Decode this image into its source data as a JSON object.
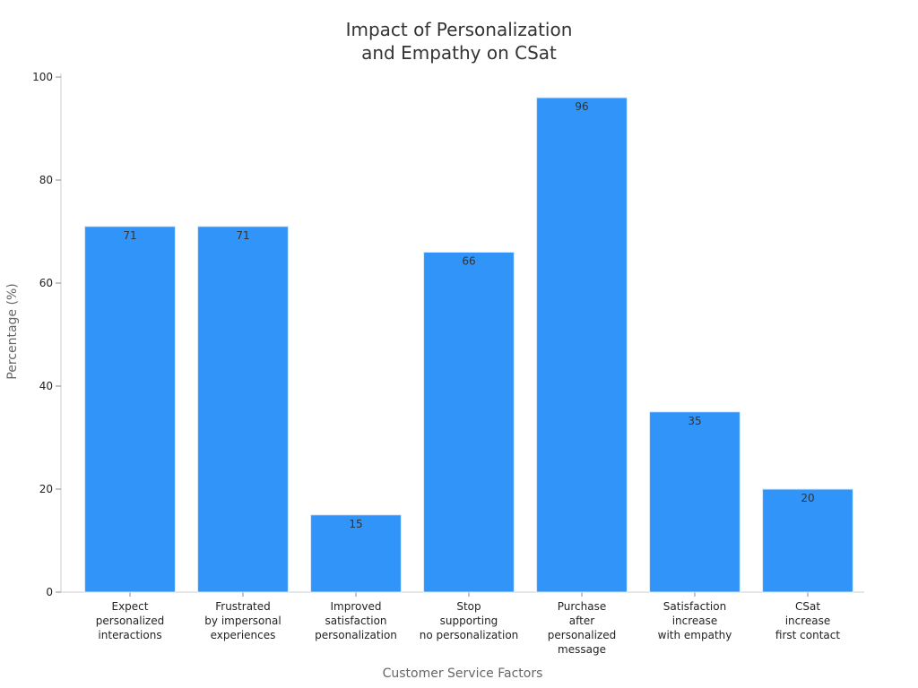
{
  "chart_data": {
    "type": "bar",
    "title": [
      "Impact of Personalization",
      "and Empathy on CSat"
    ],
    "xlabel": "Customer Service Factors",
    "ylabel": "Percentage (%)",
    "ylim": [
      0,
      100
    ],
    "yticks": [
      0,
      20,
      40,
      60,
      80,
      100
    ],
    "categories": [
      [
        "Expect",
        "personalized",
        "interactions"
      ],
      [
        "Frustrated",
        "by impersonal",
        "experiences"
      ],
      [
        "Improved",
        "satisfaction",
        "personalization"
      ],
      [
        "Stop",
        "supporting",
        "no personalization"
      ],
      [
        "Purchase",
        "after",
        "personalized",
        "message"
      ],
      [
        "Satisfaction",
        "increase",
        "with empathy"
      ],
      [
        "CSat",
        "increase",
        "first contact"
      ]
    ],
    "values": [
      71,
      71,
      15,
      66,
      96,
      35,
      20
    ],
    "data_labels": [
      "71",
      "71",
      "15",
      "66",
      "96",
      "35",
      "20"
    ],
    "bar_color": "#3094f9",
    "grid": false,
    "legend": "none"
  }
}
